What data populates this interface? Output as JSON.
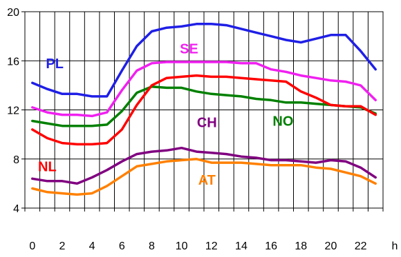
{
  "chart_data": {
    "type": "line",
    "xlabel": "",
    "ylabel": "",
    "x_unit": "h",
    "xlim": [
      -0.5,
      23.5
    ],
    "ylim": [
      4,
      20
    ],
    "x_ticks": [
      0,
      2,
      4,
      6,
      8,
      10,
      12,
      14,
      16,
      18,
      20,
      22
    ],
    "x_tick_labels": [
      "0",
      "2",
      "4",
      "6",
      "8",
      "10",
      "12",
      "14",
      "16",
      "18",
      "20",
      "22"
    ],
    "y_ticks": [
      4,
      8,
      12,
      16,
      20
    ],
    "y_tick_labels": [
      "4",
      "8",
      "12",
      "16",
      "20"
    ],
    "grid": true,
    "x": [
      0,
      1,
      2,
      3,
      4,
      5,
      6,
      7,
      8,
      9,
      10,
      11,
      12,
      13,
      14,
      15,
      16,
      17,
      18,
      19,
      20,
      21,
      22,
      23
    ],
    "series": [
      {
        "name": "PL",
        "color": "#1f1fe6",
        "values": [
          14.2,
          13.7,
          13.3,
          13.3,
          13.1,
          13.1,
          15.2,
          17.2,
          18.4,
          18.7,
          18.8,
          19.0,
          19.0,
          18.9,
          18.6,
          18.3,
          18.0,
          17.7,
          17.5,
          17.8,
          18.1,
          18.1,
          16.8,
          15.3
        ]
      },
      {
        "name": "SE",
        "color": "#f020f0",
        "values": [
          12.2,
          11.8,
          11.6,
          11.6,
          11.5,
          11.8,
          13.6,
          15.2,
          15.8,
          15.9,
          15.9,
          15.9,
          15.9,
          15.9,
          15.8,
          15.8,
          15.3,
          15.1,
          14.8,
          14.6,
          14.4,
          14.3,
          14.0,
          12.8
        ]
      },
      {
        "name": "NO",
        "color": "#008000",
        "values": [
          11.1,
          10.9,
          10.7,
          10.7,
          10.7,
          10.8,
          11.9,
          13.4,
          13.9,
          13.8,
          13.8,
          13.5,
          13.3,
          13.2,
          13.1,
          12.9,
          12.8,
          12.6,
          12.6,
          12.5,
          12.4,
          12.3,
          12.2,
          11.7
        ]
      },
      {
        "name": "NL",
        "color": "#ff0000",
        "values": [
          10.4,
          9.7,
          9.3,
          9.2,
          9.2,
          9.3,
          10.4,
          12.4,
          14.0,
          14.6,
          14.7,
          14.8,
          14.7,
          14.7,
          14.6,
          14.5,
          14.4,
          14.3,
          13.5,
          13.0,
          12.4,
          12.3,
          12.3,
          11.6
        ]
      },
      {
        "name": "CH",
        "color": "#800080",
        "values": [
          6.4,
          6.2,
          6.2,
          6.0,
          6.5,
          7.1,
          7.8,
          8.4,
          8.6,
          8.7,
          8.9,
          8.6,
          8.5,
          8.4,
          8.2,
          8.1,
          7.9,
          7.9,
          7.8,
          7.7,
          7.9,
          7.8,
          7.3,
          6.5
        ]
      },
      {
        "name": "AT",
        "color": "#ff8000",
        "values": [
          5.6,
          5.3,
          5.2,
          5.1,
          5.2,
          5.8,
          6.6,
          7.4,
          7.6,
          7.8,
          7.9,
          8.0,
          7.7,
          7.7,
          7.7,
          7.6,
          7.5,
          7.5,
          7.5,
          7.3,
          7.2,
          6.9,
          6.6,
          6.0
        ]
      }
    ],
    "labels": [
      {
        "text": "PL",
        "color": "#1f1fe6",
        "at": [
          1.5,
          15.4
        ]
      },
      {
        "text": "SE",
        "color": "#f020f0",
        "at": [
          10.5,
          16.6
        ]
      },
      {
        "text": "NO",
        "color": "#008000",
        "at": [
          16.8,
          10.7
        ]
      },
      {
        "text": "NL",
        "color": "#ff0000",
        "at": [
          1.0,
          7.0
        ]
      },
      {
        "text": "CH",
        "color": "#800080",
        "at": [
          11.7,
          10.6
        ]
      },
      {
        "text": "AT",
        "color": "#ff8000",
        "at": [
          11.7,
          5.9
        ]
      }
    ]
  }
}
